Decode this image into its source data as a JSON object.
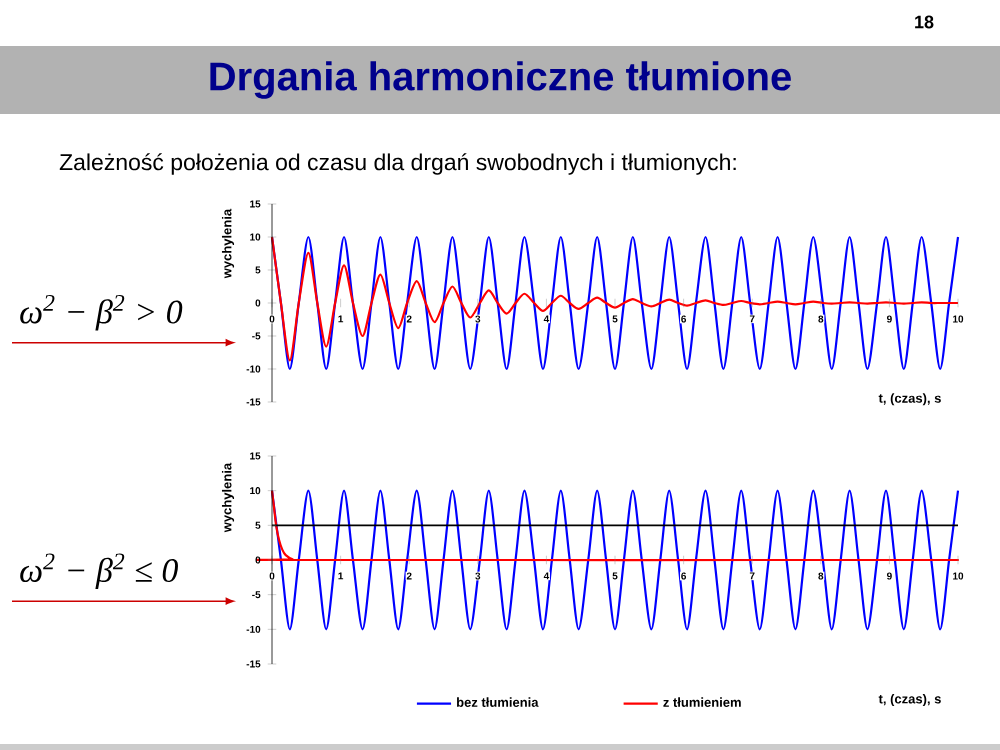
{
  "chart_data": [
    {
      "type": "line",
      "title": "Drgania harmoniczne tłumione",
      "subtitle": "Zależność położenia od czasu dla drgań swobodnych i tłumionych:",
      "xlabel": "t, (czas), s",
      "ylabel": "wychylenia",
      "annotations": [
        "18",
        "ω$^{2}$ − β$^{2}$ > 0"
      ],
      "x": [
        0.0,
        0.13,
        0.26,
        0.39,
        0.53,
        0.66,
        0.79,
        0.92,
        1.05,
        1.18,
        1.32,
        1.45,
        1.58,
        1.71,
        1.84,
        1.97,
        2.11,
        2.24,
        2.37,
        2.5,
        2.63,
        2.76,
        2.89,
        3.03,
        3.16,
        3.29,
        3.42,
        3.55,
        3.68,
        3.82,
        3.95,
        4.08,
        4.21,
        4.34,
        4.47,
        4.61,
        4.74,
        4.87,
        5.0,
        5.13,
        5.26,
        5.39,
        5.53,
        5.66,
        5.79,
        5.92,
        6.05,
        6.18,
        6.32,
        6.45,
        6.58,
        6.71,
        6.84,
        6.97,
        7.11,
        7.24,
        7.37,
        7.5,
        7.63,
        7.76,
        7.89,
        8.03,
        8.16,
        8.29,
        8.42,
        8.55,
        8.68,
        8.82,
        8.95,
        9.08,
        9.21,
        9.34,
        9.47,
        9.61,
        9.74,
        9.87,
        10.0
      ],
      "series": [
        {
          "color": "#0000ff",
          "values": [
            10,
            0,
            -10,
            0,
            10,
            0,
            -10,
            0,
            10,
            0,
            -10,
            0,
            10,
            0,
            -10,
            0,
            10,
            0,
            -10,
            0,
            10,
            0,
            -10,
            0,
            10,
            0,
            -10,
            0,
            10,
            0,
            -10,
            0,
            10,
            0,
            -10,
            0,
            10,
            0,
            -10,
            0,
            10,
            0,
            -10,
            0,
            10,
            0,
            -10,
            0,
            10,
            0,
            -10,
            0,
            10,
            0,
            -10,
            0,
            10,
            0,
            -10,
            0,
            10,
            0,
            -10,
            0,
            10,
            0,
            -10,
            0,
            10,
            0,
            -10,
            0,
            10,
            0,
            -10,
            0,
            10
          ]
        },
        {
          "color": "#ff0000",
          "values": [
            10,
            0,
            -8.7,
            0,
            7.6,
            0,
            -6.6,
            0,
            5.7,
            0,
            -5.0,
            0,
            4.3,
            0,
            -3.8,
            0,
            3.3,
            0,
            -2.9,
            0,
            2.5,
            0,
            -2.2,
            0,
            1.9,
            0,
            -1.6,
            0,
            1.4,
            0,
            -1.2,
            0,
            1.1,
            0,
            -0.9,
            0,
            0.8,
            0,
            -0.7,
            0,
            0.6,
            0,
            -0.5,
            0,
            0.5,
            0,
            -0.4,
            0,
            0.4,
            0,
            -0.3,
            0,
            0.3,
            0,
            -0.2,
            0,
            0.2,
            0,
            -0.2,
            0,
            0.2,
            0,
            -0.1,
            0,
            0.1,
            0,
            -0.1,
            0,
            0.1,
            0,
            -0.1,
            0,
            0.1,
            0,
            0,
            0,
            0
          ]
        }
      ],
      "xlim": [
        0,
        10
      ],
      "ylim": [
        -15,
        15
      ],
      "xticks": [
        0,
        1,
        2,
        3,
        4,
        5,
        6,
        7,
        8,
        9,
        10
      ],
      "yticks": [
        -15,
        -10,
        -5,
        0,
        5,
        10,
        15
      ]
    },
    {
      "type": "line",
      "xlabel": "t, (czas), s",
      "ylabel": "wychylenia",
      "annotations": [
        "ω$^{2}$ − β$^{2}$ ≤ 0"
      ],
      "x": [
        0.0,
        0.13,
        0.26,
        0.39,
        0.53,
        0.66,
        0.79,
        0.92,
        1.05,
        1.18,
        1.32,
        1.45,
        1.58,
        1.71,
        1.84,
        1.97,
        2.11,
        2.24,
        2.37,
        2.5,
        2.63,
        2.76,
        2.89,
        3.03,
        3.16,
        3.29,
        3.42,
        3.55,
        3.68,
        3.82,
        3.95,
        4.08,
        4.21,
        4.34,
        4.47,
        4.61,
        4.74,
        4.87,
        5.0,
        5.13,
        5.26,
        5.39,
        5.53,
        5.66,
        5.79,
        5.92,
        6.05,
        6.18,
        6.32,
        6.45,
        6.58,
        6.71,
        6.84,
        6.97,
        7.11,
        7.24,
        7.37,
        7.5,
        7.63,
        7.76,
        7.89,
        8.03,
        8.16,
        8.29,
        8.42,
        8.55,
        8.68,
        8.82,
        8.95,
        9.08,
        9.21,
        9.34,
        9.47,
        9.61,
        9.74,
        9.87,
        10.0
      ],
      "series": [
        {
          "name": "bez tłumienia",
          "color": "#0000ff",
          "values": [
            10,
            0,
            -10,
            0,
            10,
            0,
            -10,
            0,
            10,
            0,
            -10,
            0,
            10,
            0,
            -10,
            0,
            10,
            0,
            -10,
            0,
            10,
            0,
            -10,
            0,
            10,
            0,
            -10,
            0,
            10,
            0,
            -10,
            0,
            10,
            0,
            -10,
            0,
            10,
            0,
            -10,
            0,
            10,
            0,
            -10,
            0,
            10,
            0,
            -10,
            0,
            10,
            0,
            -10,
            0,
            10,
            0,
            -10,
            0,
            10,
            0,
            -10,
            0,
            10,
            0,
            -10,
            0,
            10,
            0,
            -10,
            0,
            10,
            0,
            -10,
            0,
            10,
            0,
            -10,
            0,
            10
          ]
        },
        {
          "name": "z tłumieniem",
          "color": "#ff0000",
          "x": [
            0,
            0.03,
            0.06,
            0.1,
            0.15,
            0.2,
            0.3,
            0.4,
            10
          ],
          "values": [
            10,
            7.5,
            5,
            3,
            1.5,
            0.7,
            0.1,
            0,
            0
          ]
        }
      ],
      "xlim": [
        0,
        10
      ],
      "ylim": [
        -15,
        15
      ],
      "xticks": [
        0,
        1,
        2,
        3,
        4,
        5,
        6,
        7,
        8,
        9,
        10
      ],
      "yticks": [
        -15,
        -10,
        -5,
        0,
        5,
        10,
        15
      ],
      "ref_lines": [
        {
          "axis": "y",
          "value": 5,
          "color": "#000000"
        }
      ],
      "legend": "bottom"
    }
  ]
}
